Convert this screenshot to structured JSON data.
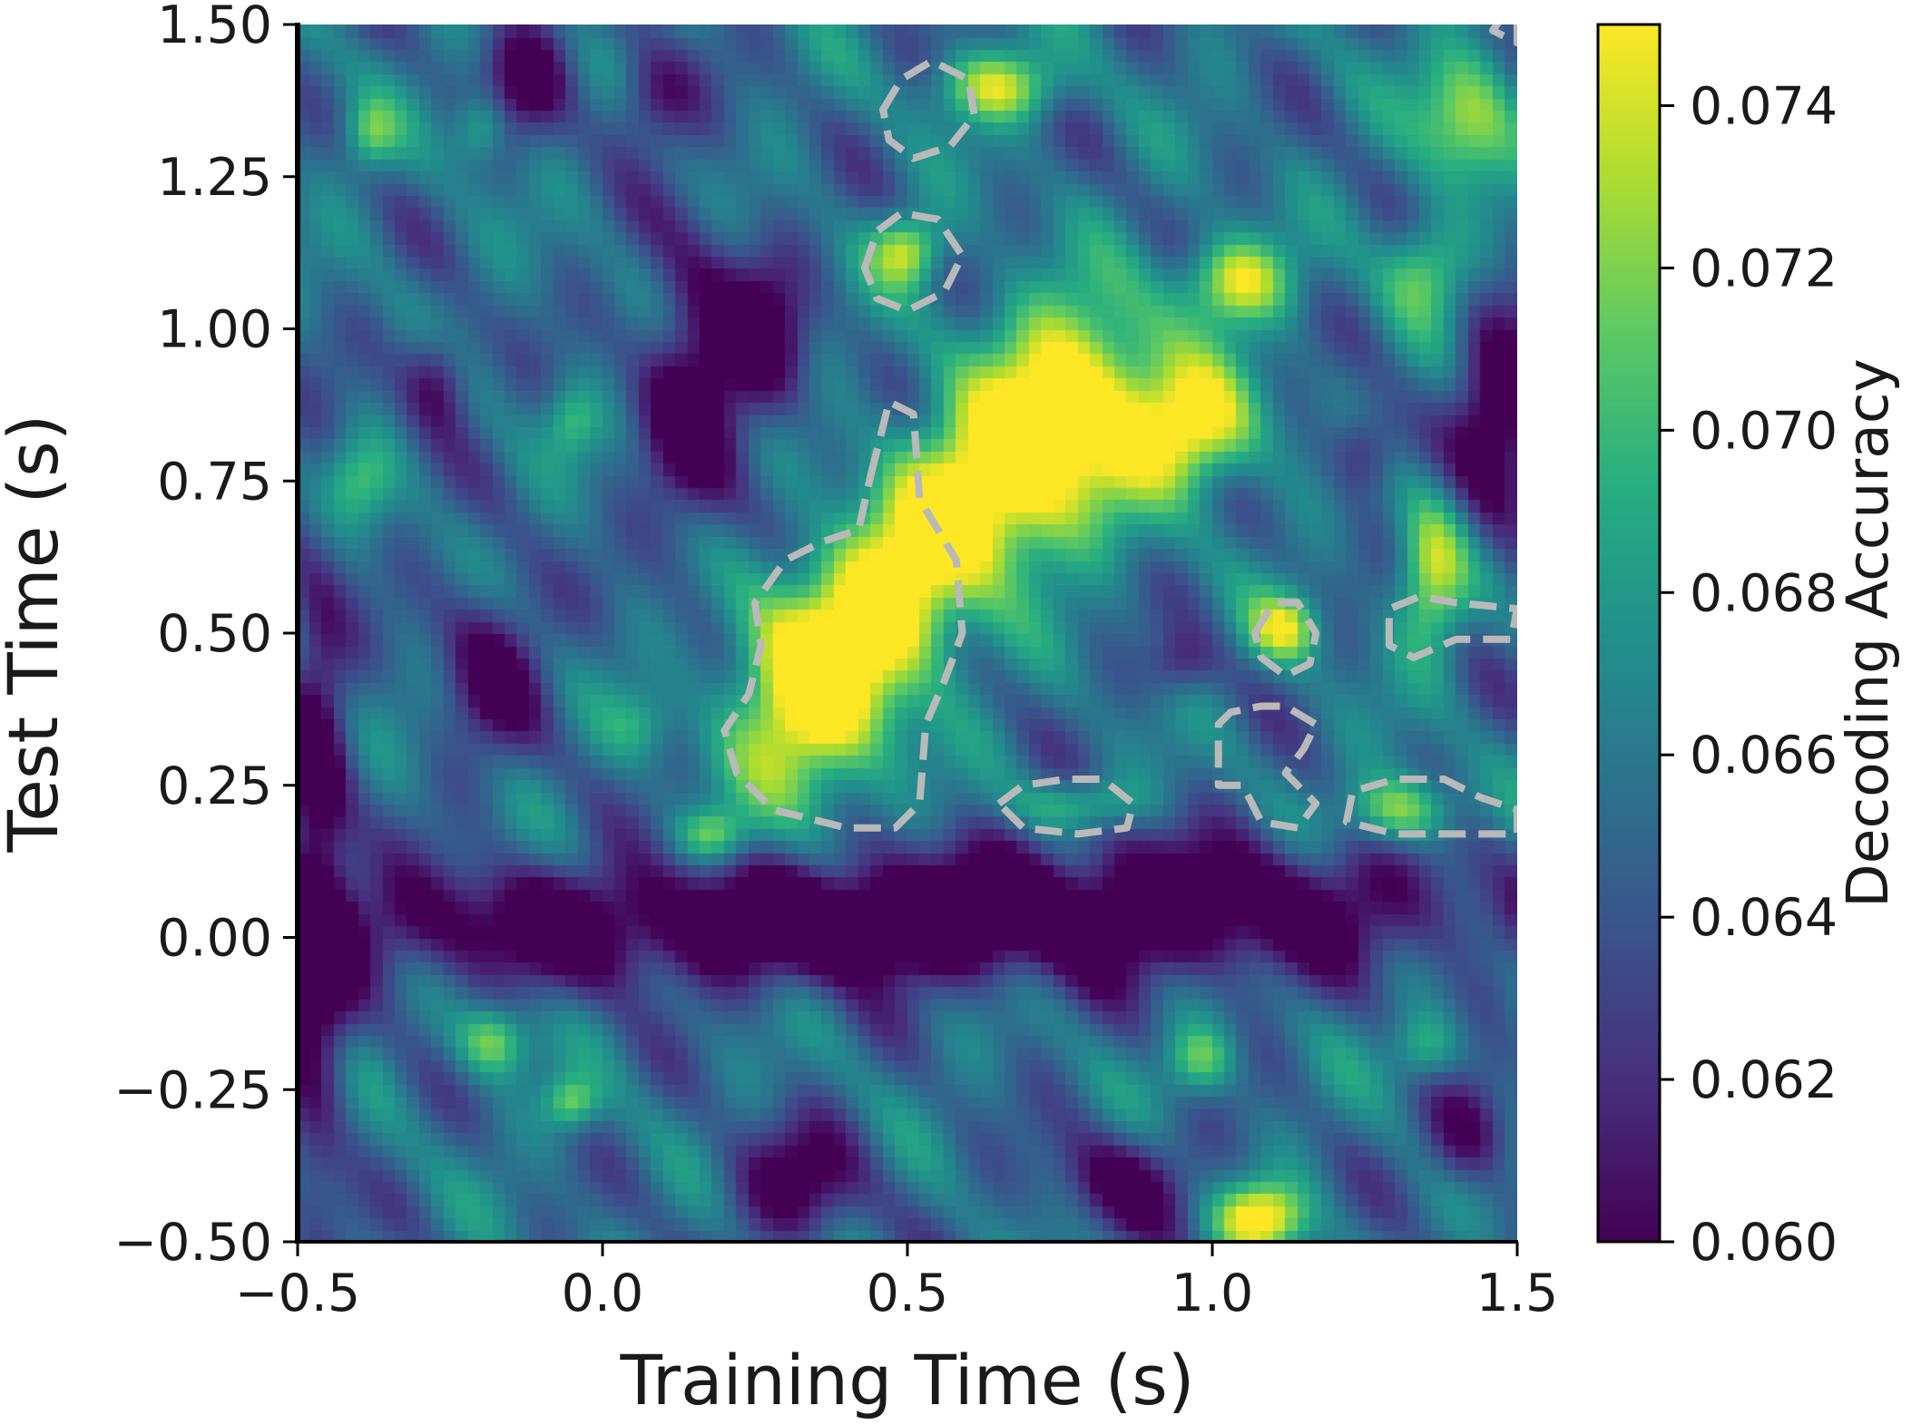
{
  "chart_data": {
    "type": "heatmap",
    "xlabel": "Training Time (s)",
    "ylabel": "Test Time (s)",
    "xlim": [
      -0.5,
      1.5
    ],
    "ylim": [
      -0.5,
      1.5
    ],
    "xticks": [
      -0.5,
      0.0,
      0.5,
      1.0,
      1.5
    ],
    "xtick_labels": [
      "−0.5",
      "0.0",
      "0.5",
      "1.0",
      "1.5"
    ],
    "yticks": [
      -0.5,
      -0.25,
      0.0,
      0.25,
      0.5,
      0.75,
      1.0,
      1.25,
      1.5
    ],
    "ytick_labels": [
      "−0.50",
      "−0.25",
      "0.00",
      "0.25",
      "0.50",
      "0.75",
      "1.00",
      "1.25",
      "1.50"
    ],
    "colorbar": {
      "label": "Decoding Accuracy",
      "range": [
        0.06,
        0.075
      ],
      "colormap": "viridis",
      "ticks": [
        0.06,
        0.062,
        0.064,
        0.066,
        0.068,
        0.07,
        0.072,
        0.074
      ],
      "tick_labels": [
        "0.060",
        "0.062",
        "0.064",
        "0.066",
        "0.068",
        "0.070",
        "0.072",
        "0.074"
      ]
    },
    "value_field": {
      "baseline": 0.0655,
      "blobs": [
        {
          "x": 0.34,
          "y": 0.4,
          "sx": 0.09,
          "sy": 0.13,
          "amp": 0.012
        },
        {
          "x": 0.48,
          "y": 0.55,
          "sx": 0.08,
          "sy": 0.1,
          "amp": 0.01
        },
        {
          "x": 0.62,
          "y": 0.72,
          "sx": 0.1,
          "sy": 0.1,
          "amp": 0.011
        },
        {
          "x": 0.78,
          "y": 0.88,
          "sx": 0.11,
          "sy": 0.12,
          "amp": 0.012
        },
        {
          "x": 0.98,
          "y": 0.84,
          "sx": 0.07,
          "sy": 0.07,
          "amp": 0.009
        },
        {
          "x": 1.04,
          "y": 1.08,
          "sx": 0.06,
          "sy": 0.05,
          "amp": 0.009
        },
        {
          "x": 0.5,
          "y": 1.13,
          "sx": 0.04,
          "sy": 0.04,
          "amp": 0.008
        },
        {
          "x": 0.65,
          "y": 1.4,
          "sx": 0.07,
          "sy": 0.04,
          "amp": 0.008
        },
        {
          "x": 1.12,
          "y": 0.51,
          "sx": 0.04,
          "sy": 0.04,
          "amp": 0.008
        },
        {
          "x": 1.36,
          "y": 0.6,
          "sx": 0.04,
          "sy": 0.09,
          "amp": 0.008
        },
        {
          "x": 1.31,
          "y": 0.21,
          "sx": 0.06,
          "sy": 0.04,
          "amp": 0.008
        },
        {
          "x": 0.78,
          "y": 0.22,
          "sx": 0.07,
          "sy": 0.03,
          "amp": 0.005
        },
        {
          "x": 1.42,
          "y": 1.35,
          "sx": 0.06,
          "sy": 0.08,
          "amp": 0.008
        },
        {
          "x": 1.35,
          "y": 1.1,
          "sx": 0.05,
          "sy": 0.06,
          "amp": 0.006
        },
        {
          "x": 1.08,
          "y": -0.46,
          "sx": 0.05,
          "sy": 0.04,
          "amp": 0.01
        },
        {
          "x": -0.18,
          "y": -0.17,
          "sx": 0.04,
          "sy": 0.04,
          "amp": 0.007
        },
        {
          "x": -0.05,
          "y": -0.27,
          "sx": 0.03,
          "sy": 0.03,
          "amp": 0.006
        },
        {
          "x": 0.18,
          "y": 0.17,
          "sx": 0.04,
          "sy": 0.03,
          "amp": 0.006
        },
        {
          "x": 0.98,
          "y": -0.2,
          "sx": 0.04,
          "sy": 0.04,
          "amp": 0.006
        },
        {
          "x": 1.35,
          "y": -0.18,
          "sx": 0.04,
          "sy": 0.04,
          "amp": 0.005
        },
        {
          "x": -0.38,
          "y": 1.32,
          "sx": 0.03,
          "sy": 0.04,
          "amp": 0.005
        },
        {
          "x": -0.2,
          "y": 1.33,
          "sx": 0.03,
          "sy": 0.04,
          "amp": 0.005
        },
        {
          "x": -0.4,
          "y": 0.75,
          "sx": 0.04,
          "sy": 0.05,
          "amp": 0.004
        },
        {
          "x": -0.05,
          "y": 0.85,
          "sx": 0.03,
          "sy": 0.04,
          "amp": 0.004
        },
        {
          "x": 0.06,
          "y": 0.35,
          "sx": 0.04,
          "sy": 0.04,
          "amp": 0.003
        },
        {
          "x": 0.0,
          "y": 0.02,
          "sx": 0.45,
          "sy": 0.07,
          "amp": -0.007
        },
        {
          "x": 0.9,
          "y": 0.05,
          "sx": 0.4,
          "sy": 0.08,
          "amp": -0.008
        },
        {
          "x": -0.47,
          "y": 0.1,
          "sx": 0.04,
          "sy": 0.35,
          "amp": -0.008
        },
        {
          "x": 0.15,
          "y": 0.9,
          "sx": 0.06,
          "sy": 0.18,
          "amp": -0.007
        },
        {
          "x": 0.27,
          "y": 0.98,
          "sx": 0.05,
          "sy": 0.1,
          "amp": -0.006
        },
        {
          "x": -0.18,
          "y": 0.45,
          "sx": 0.06,
          "sy": 0.1,
          "amp": -0.006
        },
        {
          "x": -0.27,
          "y": 0.92,
          "sx": 0.04,
          "sy": 0.06,
          "amp": -0.006
        },
        {
          "x": -0.12,
          "y": 1.42,
          "sx": 0.05,
          "sy": 0.07,
          "amp": -0.006
        },
        {
          "x": 0.08,
          "y": 1.38,
          "sx": 0.05,
          "sy": 0.06,
          "amp": -0.005
        },
        {
          "x": 0.32,
          "y": -0.4,
          "sx": 0.08,
          "sy": 0.07,
          "amp": -0.006
        },
        {
          "x": 0.85,
          "y": -0.4,
          "sx": 0.08,
          "sy": 0.06,
          "amp": -0.006
        },
        {
          "x": 1.47,
          "y": 0.85,
          "sx": 0.05,
          "sy": 0.15,
          "amp": -0.007
        },
        {
          "x": 1.42,
          "y": -0.32,
          "sx": 0.05,
          "sy": 0.06,
          "amp": -0.006
        },
        {
          "x": 1.25,
          "y": 0.8,
          "sx": 0.04,
          "sy": 0.05,
          "amp": -0.005
        },
        {
          "x": 0.95,
          "y": 0.45,
          "sx": 0.04,
          "sy": 0.04,
          "amp": -0.004
        },
        {
          "x": 0.45,
          "y": 0.02,
          "sx": 0.1,
          "sy": 0.05,
          "amp": -0.004
        }
      ]
    },
    "significance_contours": [
      {
        "points": [
          [
            0.44,
            0.76
          ],
          [
            0.47,
            0.88
          ],
          [
            0.51,
            0.86
          ],
          [
            0.52,
            0.72
          ],
          [
            0.58,
            0.62
          ],
          [
            0.59,
            0.5
          ],
          [
            0.56,
            0.42
          ],
          [
            0.53,
            0.35
          ],
          [
            0.52,
            0.22
          ],
          [
            0.48,
            0.18
          ],
          [
            0.4,
            0.18
          ],
          [
            0.28,
            0.21
          ],
          [
            0.22,
            0.27
          ],
          [
            0.2,
            0.34
          ],
          [
            0.24,
            0.4
          ],
          [
            0.26,
            0.48
          ],
          [
            0.25,
            0.55
          ],
          [
            0.3,
            0.62
          ],
          [
            0.36,
            0.65
          ],
          [
            0.42,
            0.67
          ]
        ]
      },
      {
        "points": [
          [
            0.43,
            1.1
          ],
          [
            0.45,
            1.16
          ],
          [
            0.49,
            1.19
          ],
          [
            0.55,
            1.18
          ],
          [
            0.59,
            1.12
          ],
          [
            0.56,
            1.06
          ],
          [
            0.5,
            1.03
          ],
          [
            0.45,
            1.05
          ]
        ]
      },
      {
        "points": [
          [
            0.46,
            1.36
          ],
          [
            0.49,
            1.41
          ],
          [
            0.54,
            1.44
          ],
          [
            0.6,
            1.41
          ],
          [
            0.61,
            1.35
          ],
          [
            0.57,
            1.3
          ],
          [
            0.51,
            1.28
          ],
          [
            0.47,
            1.31
          ]
        ]
      },
      {
        "points": [
          [
            1.07,
            0.5
          ],
          [
            1.1,
            0.55
          ],
          [
            1.14,
            0.55
          ],
          [
            1.17,
            0.5
          ],
          [
            1.16,
            0.45
          ],
          [
            1.12,
            0.43
          ],
          [
            1.08,
            0.46
          ]
        ]
      },
      {
        "points": [
          [
            1.29,
            0.48
          ],
          [
            1.29,
            0.54
          ],
          [
            1.34,
            0.56
          ],
          [
            1.4,
            0.55
          ],
          [
            1.5,
            0.54
          ],
          [
            1.49,
            0.49
          ],
          [
            1.4,
            0.49
          ],
          [
            1.33,
            0.46
          ]
        ]
      },
      {
        "points": [
          [
            1.01,
            0.35
          ],
          [
            1.03,
            0.37
          ],
          [
            1.08,
            0.38
          ],
          [
            1.12,
            0.38
          ],
          [
            1.17,
            0.35
          ],
          [
            1.15,
            0.31
          ],
          [
            1.12,
            0.27
          ],
          [
            1.17,
            0.22
          ],
          [
            1.14,
            0.18
          ],
          [
            1.08,
            0.19
          ],
          [
            1.05,
            0.25
          ],
          [
            1.01,
            0.25
          ],
          [
            1.01,
            0.3
          ]
        ]
      },
      {
        "points": [
          [
            0.65,
            0.22
          ],
          [
            0.69,
            0.25
          ],
          [
            0.76,
            0.26
          ],
          [
            0.82,
            0.26
          ],
          [
            0.87,
            0.22
          ],
          [
            0.86,
            0.18
          ],
          [
            0.78,
            0.17
          ],
          [
            0.69,
            0.18
          ]
        ]
      },
      {
        "points": [
          [
            1.22,
            0.19
          ],
          [
            1.23,
            0.24
          ],
          [
            1.3,
            0.26
          ],
          [
            1.38,
            0.26
          ],
          [
            1.44,
            0.23
          ],
          [
            1.5,
            0.21
          ],
          [
            1.5,
            0.17
          ],
          [
            1.4,
            0.17
          ],
          [
            1.3,
            0.17
          ]
        ]
      },
      {
        "points": [
          [
            1.46,
            1.49
          ],
          [
            1.48,
            1.52
          ],
          [
            1.5,
            1.52
          ],
          [
            1.5,
            1.47
          ]
        ]
      }
    ]
  }
}
